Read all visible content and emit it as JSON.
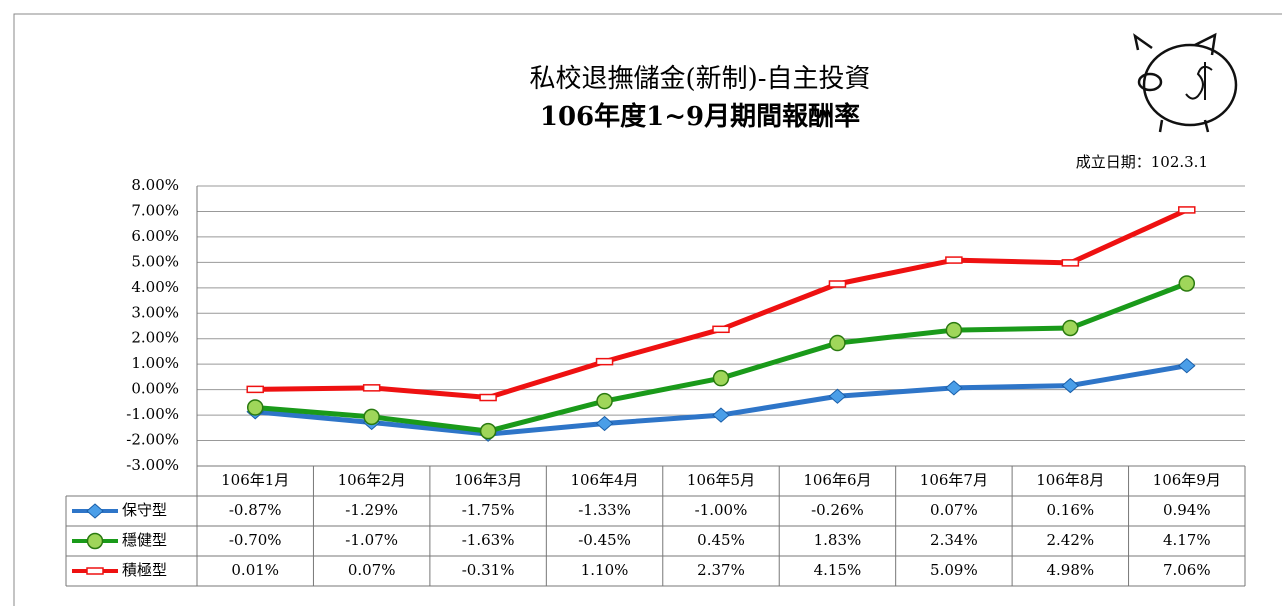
{
  "chart_data": {
    "type": "line",
    "title": "私校退撫儲金(新制)-自主投資",
    "subtitle": "106年度1~9月期間報酬率",
    "annotations": [
      "成立日期：102.3.1"
    ],
    "categories": [
      "106年1月",
      "106年2月",
      "106年3月",
      "106年4月",
      "106年5月",
      "106年6月",
      "106年7月",
      "106年8月",
      "106年9月"
    ],
    "series": [
      {
        "name": "保守型",
        "color": "#2e75c8",
        "marker": "diamond",
        "values": [
          -0.87,
          -1.29,
          -1.75,
          -1.33,
          -1.0,
          -0.26,
          0.07,
          0.16,
          0.94
        ],
        "value_labels": [
          "-0.87%",
          "-1.29%",
          "-1.75%",
          "-1.33%",
          "-1.00%",
          "-0.26%",
          "0.07%",
          "0.16%",
          "0.94%"
        ]
      },
      {
        "name": "穩健型",
        "color": "#1a9a1a",
        "marker": "circle",
        "values": [
          -0.7,
          -1.07,
          -1.63,
          -0.45,
          0.45,
          1.83,
          2.34,
          2.42,
          4.17
        ],
        "value_labels": [
          "-0.70%",
          "-1.07%",
          "-1.63%",
          "-0.45%",
          "0.45%",
          "1.83%",
          "2.34%",
          "2.42%",
          "4.17%"
        ]
      },
      {
        "name": "積極型",
        "color": "#ee1111",
        "marker": "rect",
        "values": [
          0.01,
          0.07,
          -0.31,
          1.1,
          2.37,
          4.15,
          5.09,
          4.98,
          7.06
        ],
        "value_labels": [
          "0.01%",
          "0.07%",
          "-0.31%",
          "1.10%",
          "2.37%",
          "4.15%",
          "5.09%",
          "4.98%",
          "7.06%"
        ]
      }
    ],
    "ylim": [
      -3,
      8
    ],
    "yticks": [
      {
        "value": -3,
        "label": "-3.00%"
      },
      {
        "value": -2,
        "label": "-2.00%"
      },
      {
        "value": -1,
        "label": "-1.00%"
      },
      {
        "value": 0,
        "label": "0.00%"
      },
      {
        "value": 1,
        "label": "1.00%"
      },
      {
        "value": 2,
        "label": "2.00%"
      },
      {
        "value": 3,
        "label": "3.00%"
      },
      {
        "value": 4,
        "label": "4.00%"
      },
      {
        "value": 5,
        "label": "5.00%"
      },
      {
        "value": 6,
        "label": "6.00%"
      },
      {
        "value": 7,
        "label": "7.00%"
      },
      {
        "value": 8,
        "label": "8.00%"
      }
    ],
    "grid": true
  }
}
